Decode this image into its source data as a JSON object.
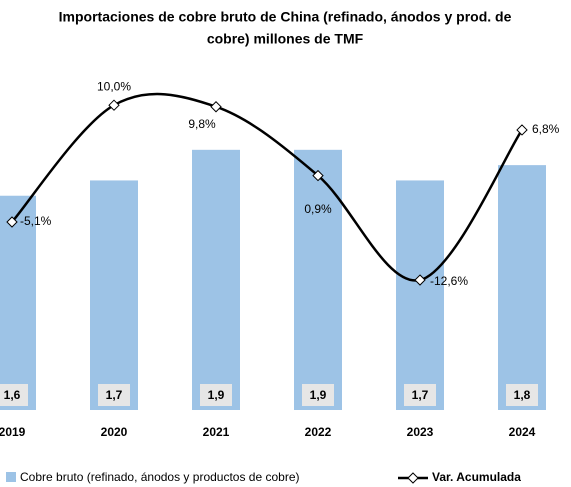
{
  "chart_data": {
    "type": "bar_line",
    "title": [
      "Importaciones de cobre bruto de China (refinado, ánodos y prod. de",
      "cobre) millones de TMF"
    ],
    "categories": [
      "2019",
      "2020",
      "2021",
      "2022",
      "2023",
      "2024"
    ],
    "series": [
      {
        "name": "Cobre bruto (refinado, ánodos y productos de cobre)",
        "type": "bar",
        "color": "#9dc3e6",
        "values": [
          1.6,
          1.7,
          1.9,
          1.9,
          1.7,
          1.8
        ],
        "value_labels": [
          "1,6",
          "1,7",
          "1,9",
          "1,9",
          "1,7",
          "1,8"
        ]
      },
      {
        "name": "Var. Acumulada",
        "type": "line",
        "color": "#000000",
        "axis": "y2",
        "values": [
          -5.1,
          10.0,
          9.8,
          0.9,
          -12.6,
          6.8
        ],
        "value_labels": [
          "-5,1%",
          "10,0%",
          "9,8%",
          "0,9%",
          "-12,6%",
          "6,8%"
        ]
      }
    ],
    "ylim": [
      0.2,
      2.5
    ],
    "y2lim": [
      -29.4,
      16.1
    ]
  }
}
